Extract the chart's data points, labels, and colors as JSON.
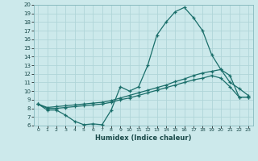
{
  "xlabel": "Humidex (Indice chaleur)",
  "bg_color": "#cce9eb",
  "grid_color": "#b0d5d8",
  "line_color": "#1a6e6a",
  "xlim": [
    -0.5,
    23.5
  ],
  "ylim": [
    6,
    20
  ],
  "xticks": [
    0,
    1,
    2,
    3,
    4,
    5,
    6,
    7,
    8,
    9,
    10,
    11,
    12,
    13,
    14,
    15,
    16,
    17,
    18,
    19,
    20,
    21,
    22,
    23
  ],
  "yticks": [
    6,
    7,
    8,
    9,
    10,
    11,
    12,
    13,
    14,
    15,
    16,
    17,
    18,
    19,
    20
  ],
  "line1_x": [
    0,
    1,
    2,
    3,
    4,
    5,
    6,
    7,
    8,
    9,
    10,
    11,
    12,
    13,
    14,
    15,
    16,
    17,
    18,
    19,
    20,
    21,
    22,
    23
  ],
  "line1_y": [
    8.5,
    7.8,
    7.8,
    7.2,
    6.5,
    6.1,
    6.2,
    6.1,
    7.8,
    10.5,
    10.0,
    10.5,
    13.0,
    16.5,
    18.0,
    19.2,
    19.7,
    18.5,
    17.0,
    14.2,
    12.5,
    11.0,
    10.3,
    9.5
  ],
  "line2_x": [
    0,
    1,
    2,
    3,
    4,
    5,
    6,
    7,
    8,
    9,
    10,
    11,
    12,
    13,
    14,
    15,
    16,
    17,
    18,
    19,
    20,
    21,
    22,
    23
  ],
  "line2_y": [
    8.5,
    8.0,
    8.0,
    8.1,
    8.2,
    8.3,
    8.4,
    8.5,
    8.7,
    9.0,
    9.2,
    9.5,
    9.8,
    10.1,
    10.4,
    10.7,
    11.0,
    11.3,
    11.5,
    11.8,
    11.5,
    10.5,
    9.3,
    9.3
  ],
  "line3_x": [
    0,
    1,
    2,
    3,
    4,
    5,
    6,
    7,
    8,
    9,
    10,
    11,
    12,
    13,
    14,
    15,
    16,
    17,
    18,
    19,
    20,
    21,
    22,
    23
  ],
  "line3_y": [
    8.5,
    8.1,
    8.2,
    8.3,
    8.4,
    8.5,
    8.6,
    8.7,
    8.9,
    9.2,
    9.5,
    9.8,
    10.1,
    10.4,
    10.7,
    11.1,
    11.4,
    11.8,
    12.1,
    12.3,
    12.5,
    11.8,
    9.3,
    9.3
  ]
}
